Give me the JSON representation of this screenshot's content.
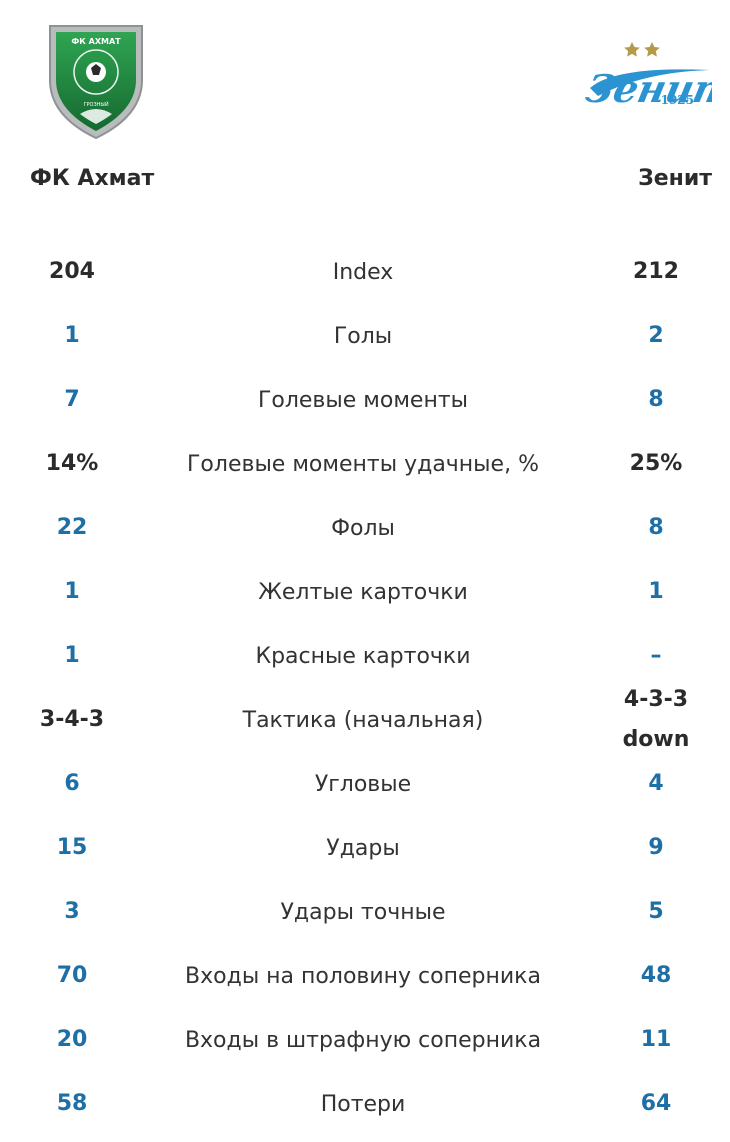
{
  "home": {
    "name": "ФК Ахмат",
    "logo_text": "ФК АХМАТ",
    "logo_subtext": "ГРОЗНЫЙ",
    "color": "#1f8a3e"
  },
  "away": {
    "name": "Зенит",
    "logo_text": "Зенит",
    "logo_year": "1925",
    "color": "#2b93d1"
  },
  "accent_blue": "#1d6fa5",
  "stats": [
    {
      "label": "Index",
      "home": "204",
      "away": "212",
      "link": false
    },
    {
      "label": "Голы",
      "home": "1",
      "away": "2",
      "link": true
    },
    {
      "label": "Голевые моменты",
      "home": "7",
      "away": "8",
      "link": true
    },
    {
      "label": "Голевые моменты удачные, %",
      "home": "14%",
      "away": "25%",
      "link": false
    },
    {
      "label": "Фолы",
      "home": "22",
      "away": "8",
      "link": true
    },
    {
      "label": "Желтые карточки",
      "home": "1",
      "away": "1",
      "link": true
    },
    {
      "label": "Красные карточки",
      "home": "1",
      "away": "–",
      "link": true
    },
    {
      "label": "Тактика (начальная)",
      "home": "3-4-3",
      "away": "4-3-3 down",
      "link": false
    },
    {
      "label": "Угловые",
      "home": "6",
      "away": "4",
      "link": true
    },
    {
      "label": "Удары",
      "home": "15",
      "away": "9",
      "link": true
    },
    {
      "label": "Удары точные",
      "home": "3",
      "away": "5",
      "link": true
    },
    {
      "label": "Входы на половину соперника",
      "home": "70",
      "away": "48",
      "link": true
    },
    {
      "label": "Входы в штрафную соперника",
      "home": "20",
      "away": "11",
      "link": true
    },
    {
      "label": "Потери",
      "home": "58",
      "away": "64",
      "link": true
    }
  ]
}
